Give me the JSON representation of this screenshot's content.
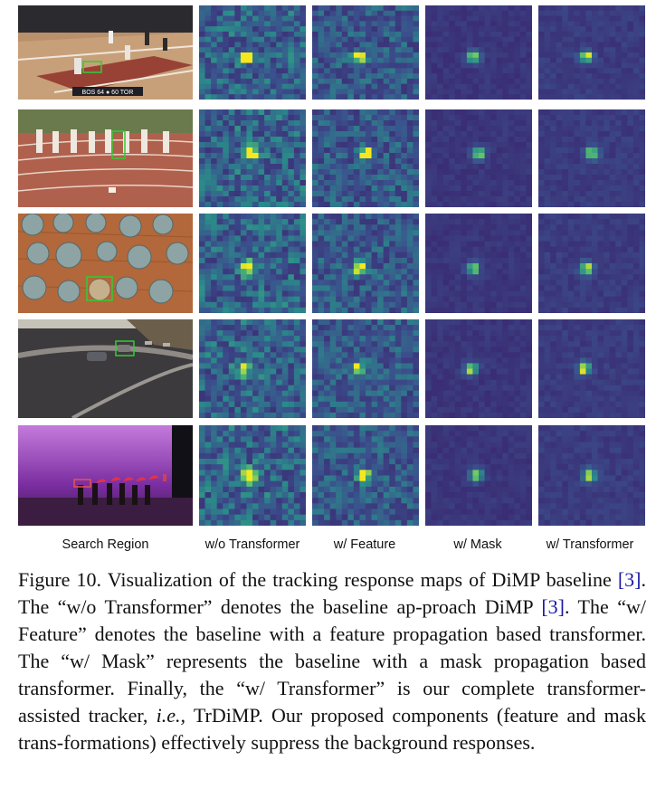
{
  "figure": {
    "column_labels": [
      "Search Region",
      "w/o Transformer",
      "w/ Feature",
      "w/ Mask",
      "w/ Transformer"
    ],
    "rows": [
      {
        "scene": "basketball-court",
        "overlay_text": "BOS 64 ● 60 TOR"
      },
      {
        "scene": "running-track"
      },
      {
        "scene": "coins-on-wood"
      },
      {
        "scene": "car-race-track"
      },
      {
        "scene": "stage-dancers"
      }
    ],
    "heatmap_colors": {
      "background": "#3b4f8c",
      "dark": "#3a1b68",
      "mid": "#2a8c8a",
      "peak": "#f5e81f",
      "peak_halo": "#5fc56a"
    }
  },
  "caption": {
    "label": "Figure 10.",
    "part1": " Visualization of the tracking response maps of DiMP baseline ",
    "ref1": "[3]",
    "part2": ".  The “w/o Transformer” denotes the baseline ap-proach DiMP ",
    "ref2": "[3]",
    "part3": ".  The “w/ Feature” denotes the baseline with a feature propagation based transformer. The “w/ Mask” represents the baseline with a mask propagation based transformer. Finally, the “w/ Transformer” is our complete transformer-assisted tracker, ",
    "ie": "i.e.,",
    "part4": " TrDiMP. Our proposed components (feature and mask trans-formations) effectively suppress the background responses."
  }
}
